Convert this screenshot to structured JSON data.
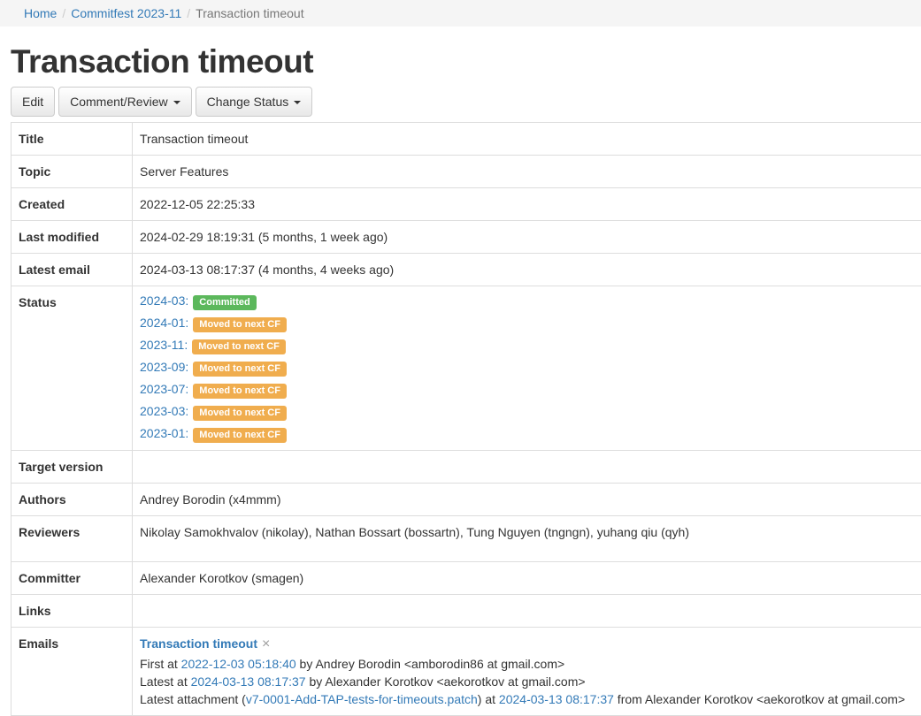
{
  "breadcrumb": {
    "separator": "/",
    "items": [
      {
        "label": "Home"
      },
      {
        "label": "Commitfest 2023-11"
      },
      {
        "label": "Transaction timeout"
      }
    ]
  },
  "page": {
    "title": "Transaction timeout"
  },
  "toolbar": {
    "edit_label": "Edit",
    "comment_review_label": "Comment/Review",
    "change_status_label": "Change Status"
  },
  "details": {
    "title": {
      "label": "Title",
      "value": "Transaction timeout"
    },
    "topic": {
      "label": "Topic",
      "value": "Server Features"
    },
    "created": {
      "label": "Created",
      "value": "2022-12-05 22:25:33"
    },
    "last_modified": {
      "label": "Last modified",
      "value": "2024-02-29 18:19:31 (5 months, 1 week ago)"
    },
    "latest_email": {
      "label": "Latest email",
      "value": "2024-03-13 08:17:37 (4 months, 4 weeks ago)"
    },
    "target_version": {
      "label": "Target version",
      "value": ""
    },
    "authors": {
      "label": "Authors",
      "value": "Andrey Borodin (x4mmm)"
    },
    "reviewers": {
      "label": "Reviewers",
      "value": "Nikolay Samokhvalov (nikolay), Nathan Bossart (bossartn), Tung Nguyen (tngngn), yuhang qiu (qyh)"
    },
    "committer": {
      "label": "Committer",
      "value": "Alexander Korotkov (smagen)"
    },
    "links": {
      "label": "Links",
      "value": ""
    }
  },
  "status": {
    "label": "Status",
    "colon": ":",
    "entries": [
      {
        "cf": "2024-03",
        "badge": "Committed",
        "type": "success"
      },
      {
        "cf": "2024-01",
        "badge": "Moved to next CF",
        "type": "warning"
      },
      {
        "cf": "2023-11",
        "badge": "Moved to next CF",
        "type": "warning"
      },
      {
        "cf": "2023-09",
        "badge": "Moved to next CF",
        "type": "warning"
      },
      {
        "cf": "2023-07",
        "badge": "Moved to next CF",
        "type": "warning"
      },
      {
        "cf": "2023-03",
        "badge": "Moved to next CF",
        "type": "warning"
      },
      {
        "cf": "2023-01",
        "badge": "Moved to next CF",
        "type": "warning"
      }
    ]
  },
  "emails": {
    "label": "Emails",
    "thread": {
      "title": "Transaction timeout",
      "dismiss_icon": "×",
      "first_prefix": "First at ",
      "first_date": "2022-12-03 05:18:40",
      "first_suffix": " by Andrey Borodin <amborodin86 at gmail.com>",
      "latest_prefix": "Latest at ",
      "latest_date": "2024-03-13 08:17:37",
      "latest_suffix": " by Alexander Korotkov <aekorotkov at gmail.com>",
      "attachment_prefix": "Latest attachment (",
      "attachment_name": "v7-0001-Add-TAP-tests-for-timeouts.patch",
      "attachment_mid": ") at ",
      "attachment_date": "2024-03-13 08:17:37",
      "attachment_suffix": " from Alexander Korotkov <aekorotkov at gmail.com>"
    }
  },
  "colors": {
    "link_blue": "#337ab7",
    "badge_committed_green": "#5cb85c",
    "badge_moved_orange": "#f0ad4e",
    "breadcrumb_bg": "#f5f5f5",
    "breadcrumb_active": "#777777",
    "table_border": "#dddddd",
    "text": "#333333"
  }
}
